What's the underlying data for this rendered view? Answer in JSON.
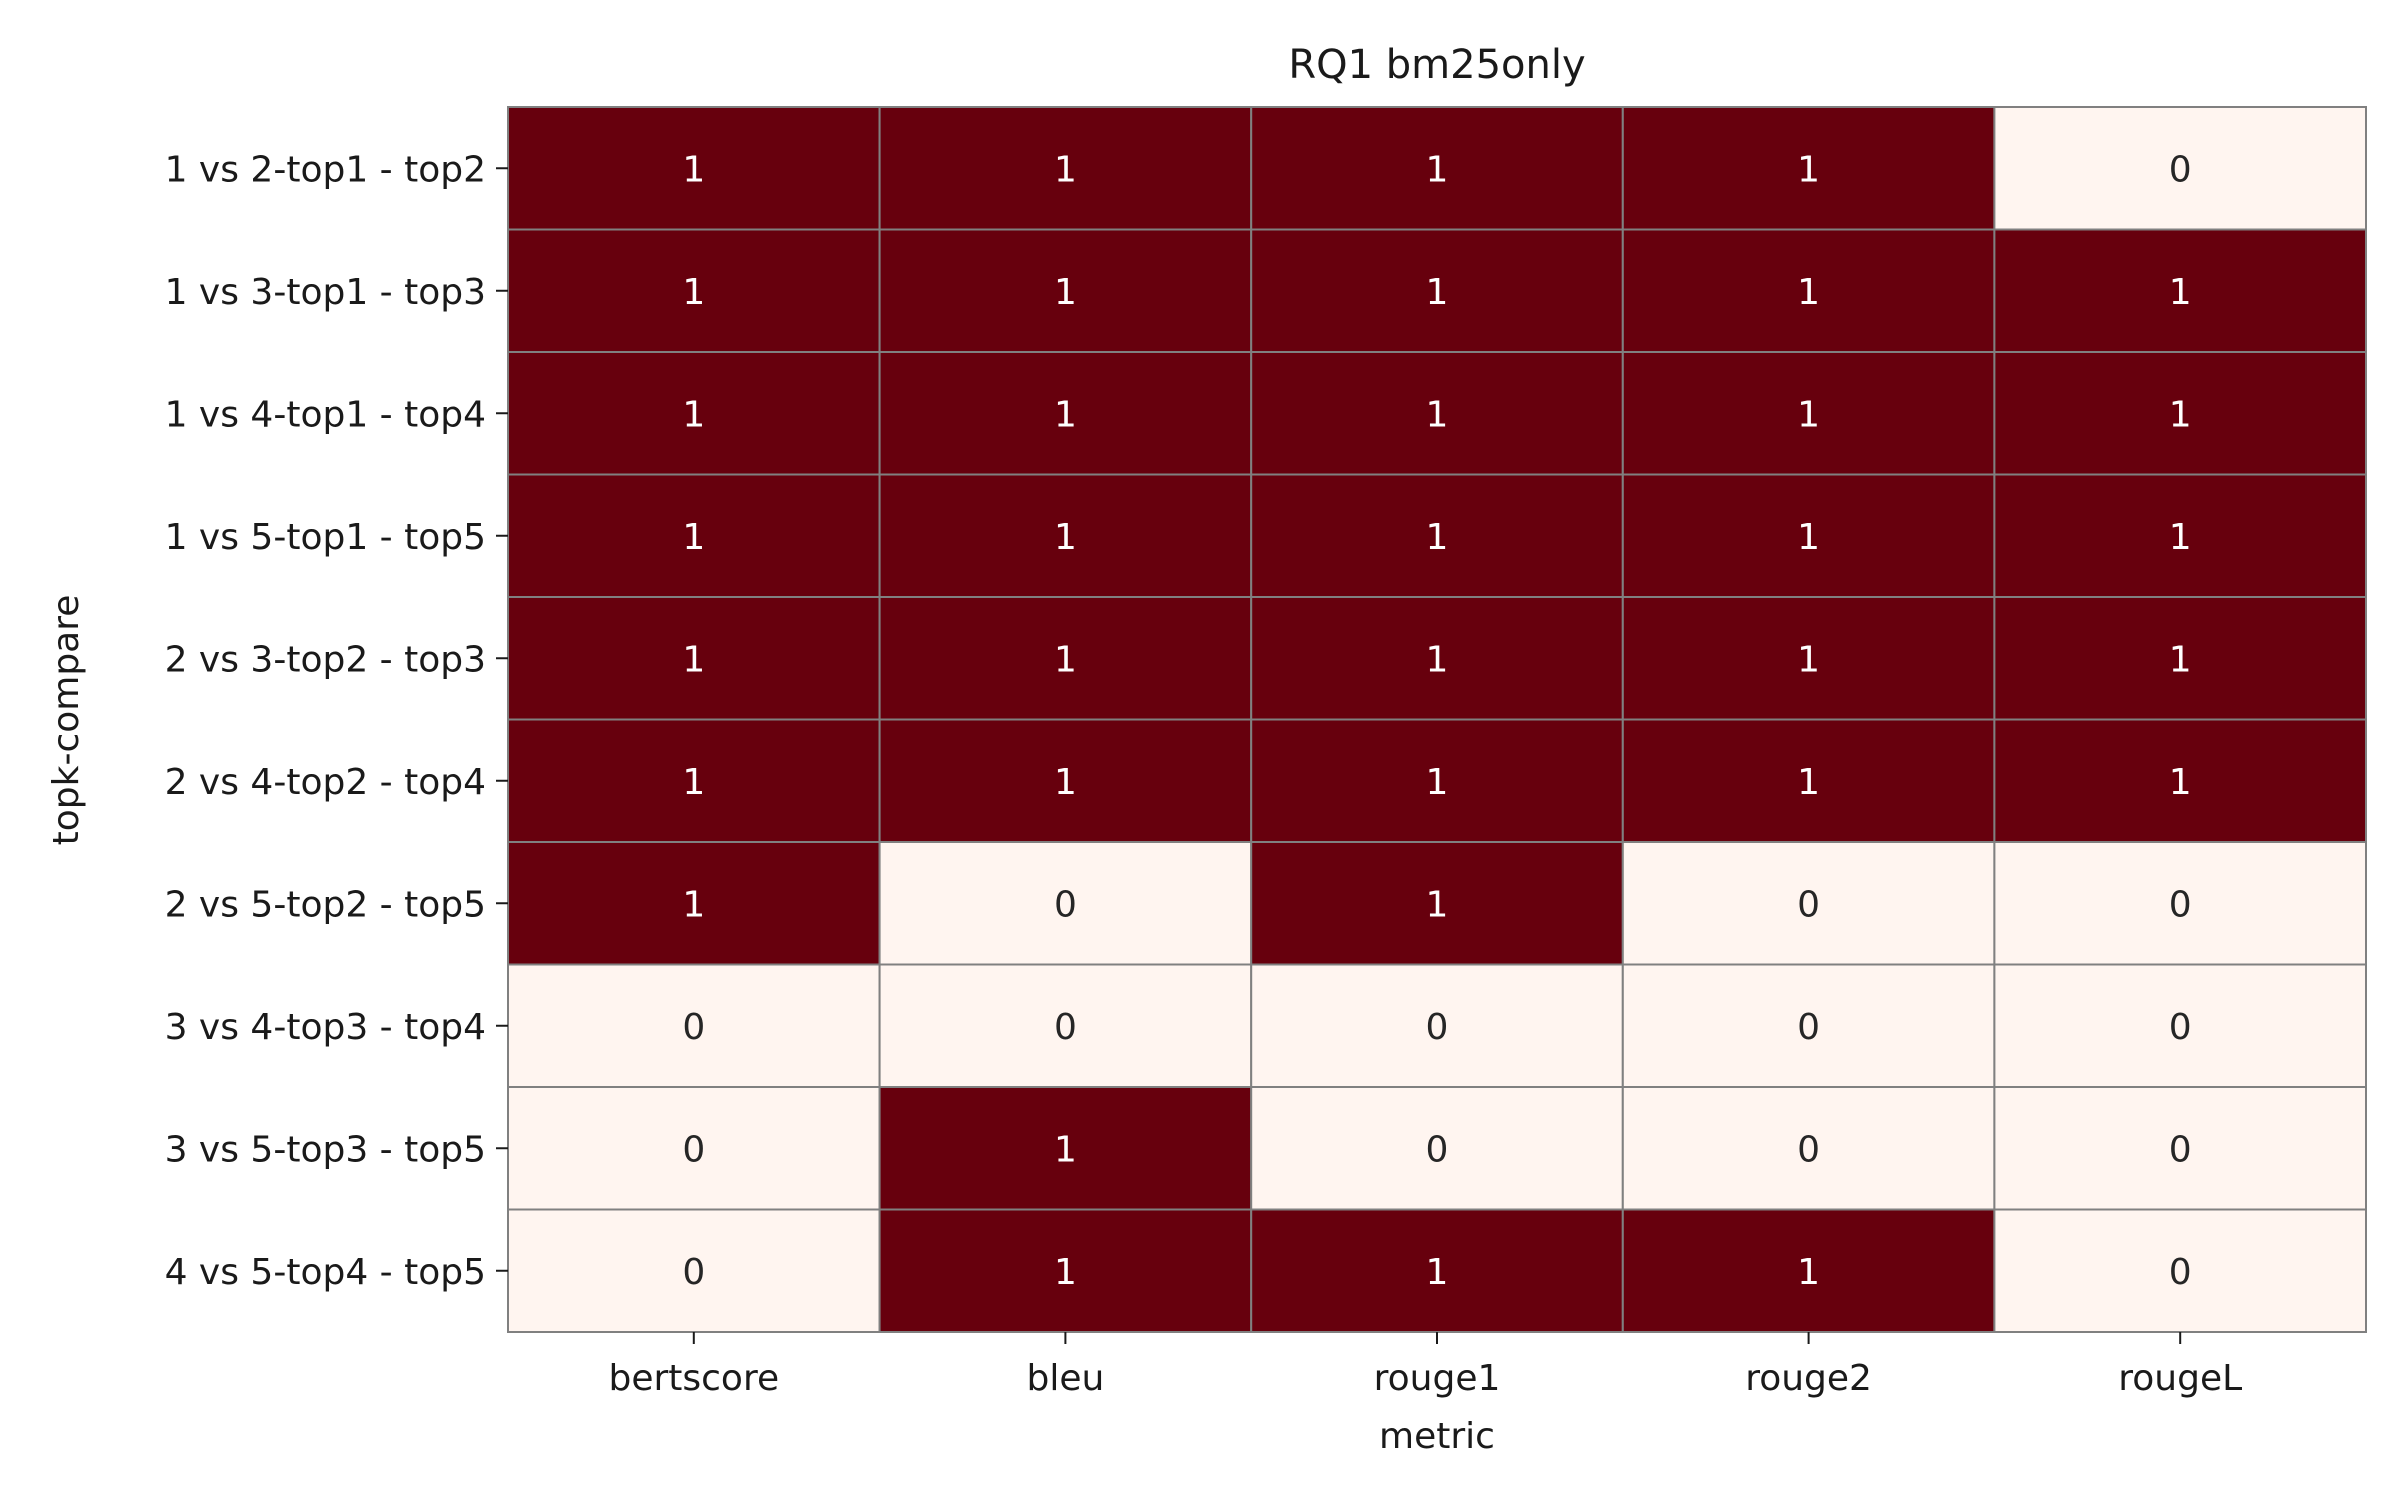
{
  "chart_data": {
    "type": "heatmap",
    "title": "RQ1 bm25only",
    "xlabel": "metric",
    "ylabel": "topk-compare",
    "x_categories": [
      "bertscore",
      "bleu",
      "rouge1",
      "rouge2",
      "rougeL"
    ],
    "y_categories": [
      "1 vs 2-top1 - top2",
      "1 vs 3-top1 - top3",
      "1 vs 4-top1 - top4",
      "1 vs 5-top1 - top5",
      "2 vs 3-top2 - top3",
      "2 vs 4-top2 - top4",
      "2 vs 5-top2 - top5",
      "3 vs 4-top3 - top4",
      "3 vs 5-top3 - top5",
      "4 vs 5-top4 - top5"
    ],
    "values": [
      [
        1,
        1,
        1,
        1,
        0
      ],
      [
        1,
        1,
        1,
        1,
        1
      ],
      [
        1,
        1,
        1,
        1,
        1
      ],
      [
        1,
        1,
        1,
        1,
        1
      ],
      [
        1,
        1,
        1,
        1,
        1
      ],
      [
        1,
        1,
        1,
        1,
        1
      ],
      [
        1,
        0,
        1,
        0,
        0
      ],
      [
        0,
        0,
        0,
        0,
        0
      ],
      [
        0,
        1,
        0,
        0,
        0
      ],
      [
        0,
        1,
        1,
        1,
        0
      ]
    ],
    "colors": {
      "high": "#67000d",
      "low": "#fff5f0",
      "grid": "#808080",
      "text_on_high": "#ffffff",
      "text_on_low": "#262626"
    },
    "grid": true,
    "legend": "none"
  }
}
